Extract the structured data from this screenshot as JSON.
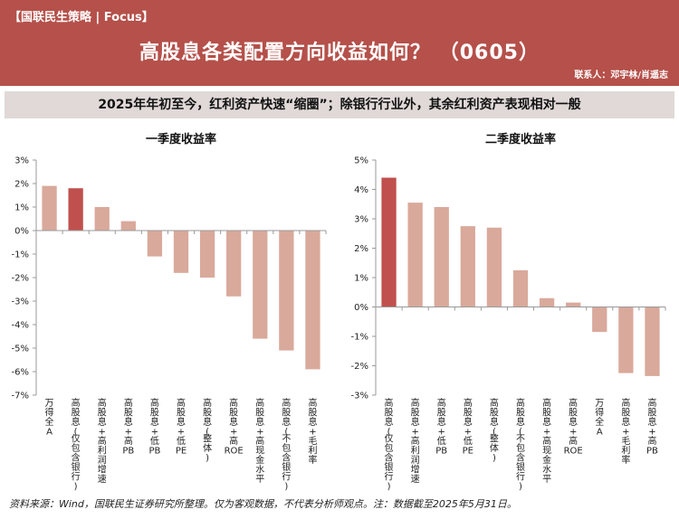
{
  "header": {
    "brand": "【国联民生策略 | Focus】",
    "title": "高股息各类配置方向收益如何？ （0605）",
    "contact": "联系人：邓宇林/肖遥志"
  },
  "subtitle": "2025年年初至今，红利资产快速“缩圈”；除银行行业外，其余红利资产表现相对一般",
  "source": "资料来源：Wind，国联民生证券研究所整理。仅为客观数据，不代表分析师观点。注：数据截至2025年5月31日。",
  "colors": {
    "header_bg": "#b5504a",
    "bar_normal": "#d9a99b",
    "bar_highlight": "#c0504d"
  },
  "chart_data": [
    {
      "type": "bar",
      "title": "一季度收益率",
      "categories": [
        "万得全A",
        "高股息(仅包含银行)",
        "高股息+高利润增速",
        "高股息+高PB",
        "高股息+低PB",
        "高股息+低PE",
        "高股息(整体)",
        "高股息+高ROE",
        "高股息+高现金水平",
        "高股息(不包含银行)",
        "高股息+毛利率"
      ],
      "values": [
        1.9,
        1.8,
        1.0,
        0.4,
        -1.1,
        -1.8,
        -2.0,
        -2.8,
        -4.6,
        -5.1,
        -5.9
      ],
      "highlight": [
        1
      ],
      "ylim": [
        -7,
        3
      ],
      "yticks": [
        3,
        2,
        1,
        0,
        -1,
        -2,
        -3,
        -4,
        -5,
        -6,
        -7
      ],
      "ytick_labels": [
        "3%",
        "2%",
        "1%",
        "0%",
        "-1%",
        "-2%",
        "-3%",
        "-4%",
        "-5%",
        "-6%",
        "-7%"
      ],
      "xlabel": "",
      "ylabel": ""
    },
    {
      "type": "bar",
      "title": "二季度收益率",
      "categories": [
        "高股息(仅包含银行)",
        "高股息+高利润增速",
        "高股息+低PB",
        "高股息+低PE",
        "高股息(整体)",
        "高股息(不包含银行)",
        "高股息+高现金水平",
        "高股息+高ROE",
        "万得全A",
        "高股息+毛利率",
        "高股息+高PB"
      ],
      "values": [
        4.4,
        3.55,
        3.4,
        2.75,
        2.7,
        1.25,
        0.3,
        0.15,
        -0.85,
        -2.25,
        -2.35
      ],
      "highlight": [
        0
      ],
      "ylim": [
        -3,
        5
      ],
      "yticks": [
        5,
        4,
        3,
        2,
        1,
        0,
        -1,
        -2,
        -3
      ],
      "ytick_labels": [
        "5%",
        "4%",
        "3%",
        "2%",
        "1%",
        "0%",
        "-1%",
        "-2%",
        "-3%"
      ],
      "xlabel": "",
      "ylabel": ""
    }
  ]
}
